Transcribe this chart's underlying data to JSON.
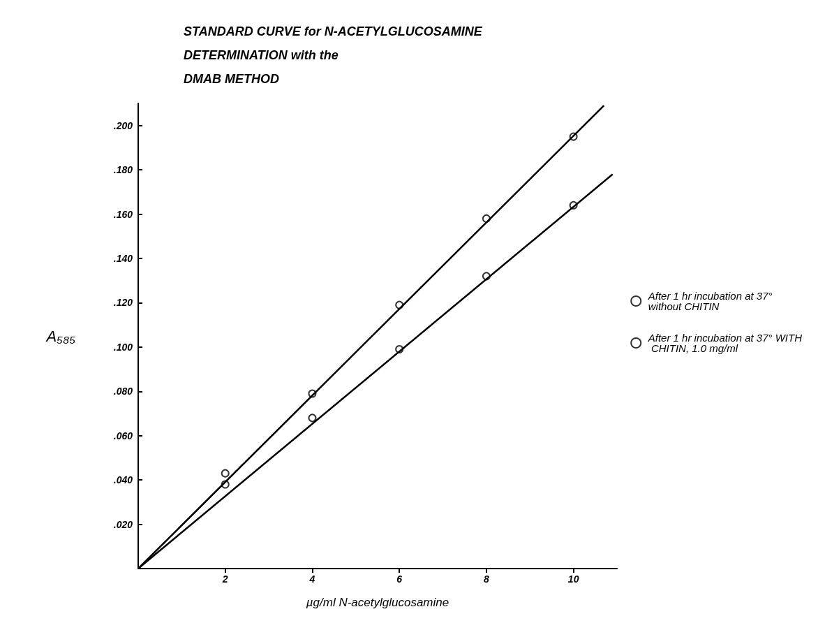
{
  "chart_data": {
    "type": "scatter",
    "title": "STANDARD CURVE for N-ACETYLGLUCOSAMINE\nDETERMINATION with the\nDMAB METHOD",
    "xlabel": "µg/ml N-acetylglucosamine",
    "ylabel": "A₅₈₅",
    "xlim": [
      0,
      11
    ],
    "xticks": [
      2,
      4,
      6,
      8,
      10
    ],
    "ylim": [
      0,
      0.21
    ],
    "yticks": [
      {
        "value": 0.02,
        "label": ".020"
      },
      {
        "value": 0.04,
        "label": ".040"
      },
      {
        "value": 0.06,
        "label": ".060"
      },
      {
        "value": 0.08,
        "label": ".080"
      },
      {
        "value": 0.1,
        "label": ".100"
      },
      {
        "value": 0.12,
        "label": ".120"
      },
      {
        "value": 0.14,
        "label": ".140"
      },
      {
        "value": 0.16,
        "label": ".160"
      },
      {
        "value": 0.18,
        "label": ".180"
      },
      {
        "value": 0.2,
        "label": ".200"
      }
    ],
    "grid": false,
    "legend": "right",
    "marker": "circle",
    "series": [
      {
        "name": "After 1 hr incubation at 37° without CHITIN",
        "color": "#000000",
        "x": [
          2,
          4,
          6,
          8,
          10
        ],
        "values": [
          0.043,
          0.079,
          0.119,
          0.158,
          0.195
        ]
      },
      {
        "name": "After 1 hr incubation at 37° WITH CHITIN, 1.0 mg/ml",
        "color": "#000000",
        "x": [
          2,
          4,
          6,
          8,
          10
        ],
        "values": [
          0.038,
          0.068,
          0.099,
          0.132,
          0.164
        ]
      },
      {
        "type": "line",
        "marker": "none",
        "color": "#000000",
        "x": [
          0,
          10.7
        ],
        "values": [
          0,
          0.209
        ]
      },
      {
        "type": "line",
        "marker": "none",
        "color": "#000000",
        "x": [
          0,
          10.9
        ],
        "values": [
          0,
          0.178
        ]
      }
    ]
  }
}
